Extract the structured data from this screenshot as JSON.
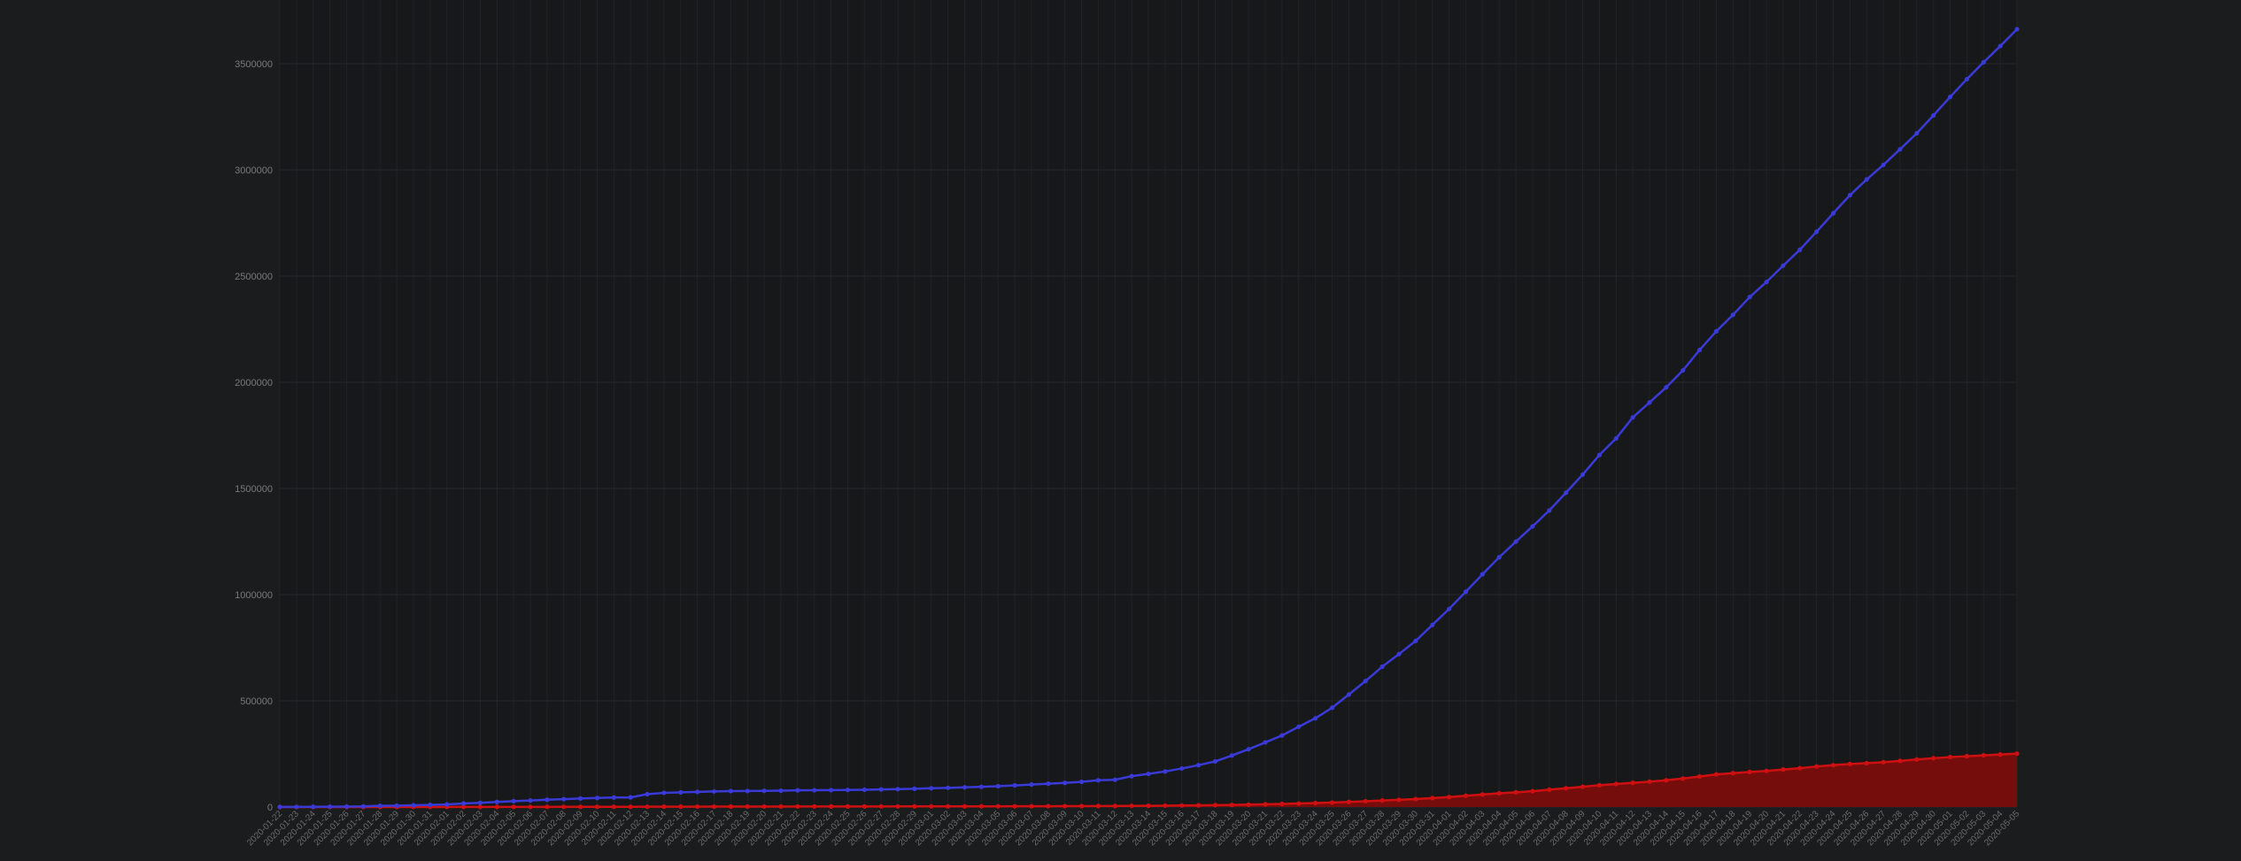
{
  "chart_data": {
    "type": "line",
    "title": "",
    "xlabel": "",
    "ylabel": "",
    "ylim": [
      0,
      3800000
    ],
    "y_ticks": [
      0,
      500000,
      1000000,
      1500000,
      2000000,
      2500000,
      3000000,
      3500000
    ],
    "y_tick_labels": [
      "0",
      "500000",
      "1000000",
      "1500000",
      "2000000",
      "2500000",
      "3000000",
      "3500000"
    ],
    "grid": true,
    "legend": "none",
    "x_start": "2020-01-22",
    "x_end": "2020-05-05",
    "x_tick_labels": [
      "2020-01-22",
      "2020-01-23",
      "2020-01-24",
      "2020-01-25",
      "2020-01-26",
      "2020-01-27",
      "2020-01-28",
      "2020-01-29",
      "2020-01-30",
      "2020-01-31",
      "2020-02-01",
      "2020-02-02",
      "2020-02-03",
      "2020-02-04",
      "2020-02-05",
      "2020-02-06",
      "2020-02-07",
      "2020-02-08",
      "2020-02-09",
      "2020-02-10",
      "2020-02-11",
      "2020-02-12",
      "2020-02-13",
      "2020-02-14",
      "2020-02-15",
      "2020-02-16",
      "2020-02-17",
      "2020-02-18",
      "2020-02-19",
      "2020-02-20",
      "2020-02-21",
      "2020-02-22",
      "2020-02-23",
      "2020-02-24",
      "2020-02-25",
      "2020-02-26",
      "2020-02-27",
      "2020-02-28",
      "2020-02-29",
      "2020-03-01",
      "2020-03-02",
      "2020-03-03",
      "2020-03-04",
      "2020-03-05",
      "2020-03-06",
      "2020-03-07",
      "2020-03-08",
      "2020-03-09",
      "2020-03-10",
      "2020-03-11",
      "2020-03-12",
      "2020-03-13",
      "2020-03-14",
      "2020-03-15",
      "2020-03-16",
      "2020-03-17",
      "2020-03-18",
      "2020-03-19",
      "2020-03-20",
      "2020-03-21",
      "2020-03-22",
      "2020-03-23",
      "2020-03-24",
      "2020-03-25",
      "2020-03-26",
      "2020-03-27",
      "2020-03-28",
      "2020-03-29",
      "2020-03-30",
      "2020-03-31",
      "2020-04-01",
      "2020-04-02",
      "2020-04-03",
      "2020-04-04",
      "2020-04-05",
      "2020-04-06",
      "2020-04-07",
      "2020-04-08",
      "2020-04-09",
      "2020-04-10",
      "2020-04-11",
      "2020-04-12",
      "2020-04-13",
      "2020-04-14",
      "2020-04-15",
      "2020-04-16",
      "2020-04-17",
      "2020-04-18",
      "2020-04-19",
      "2020-04-20",
      "2020-04-21",
      "2020-04-22",
      "2020-04-23",
      "2020-04-24",
      "2020-04-25",
      "2020-04-26",
      "2020-04-27",
      "2020-04-28",
      "2020-04-29",
      "2020-04-30",
      "2020-05-01",
      "2020-05-02",
      "2020-05-03",
      "2020-05-04",
      "2020-05-05"
    ],
    "series": [
      {
        "name": "",
        "color": "#3a3ad8",
        "fill": false,
        "values": [
          555,
          654,
          941,
          1434,
          2118,
          2927,
          5578,
          6166,
          8234,
          9927,
          12038,
          16787,
          19881,
          23892,
          27635,
          30794,
          34391,
          37120,
          40150,
          42762,
          44802,
          45221,
          60368,
          66885,
          69030,
          71224,
          73258,
          75136,
          75639,
          76197,
          76819,
          78572,
          78958,
          79561,
          80406,
          81388,
          82746,
          84112,
          86011,
          88369,
          90306,
          92840,
          95120,
          97886,
          101801,
          105847,
          109821,
          113590,
          118620,
          125875,
          128352,
          145205,
          156101,
          167454,
          181574,
          197102,
          214821,
          242570,
          272208,
          304507,
          336953,
          378235,
          418045,
          467653,
          529591,
          593291,
          660693,
          720140,
          782389,
          857487,
          932605,
          1013466,
          1095917,
          1176060,
          1249754,
          1321481,
          1396476,
          1480202,
          1565278,
          1657526,
          1735650,
          1834721,
          1904838,
          1976191,
          2056054,
          2152437,
          2240190,
          2317759,
          2401379,
          2472259,
          2549123,
          2624000,
          2708885,
          2795731,
          2881140,
          2955033,
          3023722,
          3097229,
          3172287,
          3256846,
          3343777,
          3427343,
          3506729,
          3583055,
          3662691
        ]
      },
      {
        "name": "",
        "color": "#d01010",
        "fill": true,
        "values": [
          17,
          18,
          26,
          42,
          56,
          82,
          131,
          133,
          171,
          213,
          259,
          362,
          426,
          492,
          564,
          634,
          719,
          806,
          906,
          1013,
          1113,
          1118,
          1371,
          1523,
          1666,
          1770,
          1868,
          2007,
          2122,
          2247,
          2251,
          2458,
          2469,
          2629,
          2708,
          2770,
          2814,
          2872,
          2941,
          2996,
          3085,
          3160,
          3254,
          3348,
          3460,
          3558,
          3802,
          3988,
          4262,
          4615,
          4720,
          5404,
          5819,
          6440,
          7126,
          7905,
          8733,
          9867,
          11299,
          12973,
          14651,
          16505,
          18625,
          21181,
          23970,
          27198,
          30652,
          33925,
          37582,
          42107,
          46809,
          53190,
          58787,
          64606,
          69374,
          74565,
          81865,
          88338,
          95455,
          102525,
          108503,
          114090,
          119482,
          125984,
          134177,
          143800,
          153822,
          159510,
          165069,
          169986,
          176583,
          183027,
          190858,
          197159,
          202846,
          206544,
          211167,
          217153,
          224172,
          229971,
          235149,
          238999,
          243401,
          247470,
          251537
        ]
      }
    ]
  }
}
